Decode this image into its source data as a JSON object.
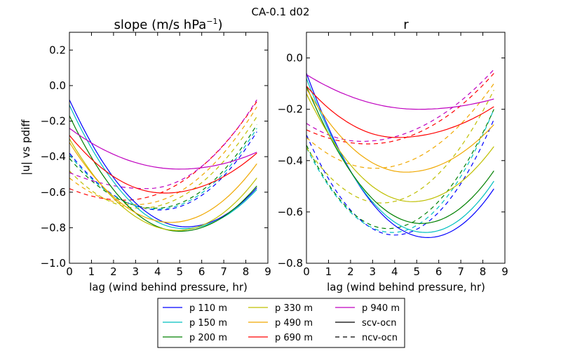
{
  "chart_data": {
    "suptitle": "CA-0.1 d02",
    "legend": {
      "placement": "bottom-center",
      "entries": [
        {
          "label": "p 110 m",
          "color": "#0000ff",
          "style": "solid"
        },
        {
          "label": "p 150 m",
          "color": "#00bfbf",
          "style": "solid"
        },
        {
          "label": "p 200 m",
          "color": "#008000",
          "style": "solid"
        },
        {
          "label": "p 330 m",
          "color": "#bfbf00",
          "style": "solid"
        },
        {
          "label": "p 490 m",
          "color": "#f0a800",
          "style": "solid"
        },
        {
          "label": "p 690 m",
          "color": "#ff0000",
          "style": "solid"
        },
        {
          "label": "p 940 m",
          "color": "#bf00bf",
          "style": "solid"
        },
        {
          "label": "scv-ocn",
          "color": "#000000",
          "style": "solid"
        },
        {
          "label": "ncv-ocn",
          "color": "#000000",
          "style": "dashed"
        }
      ]
    },
    "panels": [
      {
        "type": "line",
        "title": "slope (m/s hPa$^{-1}$)",
        "title_main": "slope (m/s hPa",
        "title_sup": "−1",
        "title_end": ")",
        "xlabel": "lag (wind behind pressure, hr)",
        "ylabel": "|u| vs pdiff",
        "xlim": [
          0,
          9
        ],
        "ylim": [
          -1.0,
          0.3
        ],
        "xticks": [
          0,
          1,
          2,
          3,
          4,
          5,
          6,
          7,
          8,
          9
        ],
        "yticks": [
          -1.0,
          -0.8,
          -0.6,
          -0.4,
          -0.2,
          0.0,
          0.2
        ],
        "ytick_labels": [
          "−1.0",
          "−0.8",
          "−0.6",
          "−0.4",
          "−0.2",
          "0.0",
          "0.2"
        ],
        "grid": false,
        "series": [
          {
            "name": "p 110 m",
            "type": "scv-ocn",
            "x": [
              0,
              8.5
            ],
            "y": [
              -0.08,
              -0.575
            ],
            "min": [
              5.3,
              -0.795
            ]
          },
          {
            "name": "p 150 m",
            "type": "scv-ocn",
            "x": [
              0,
              8.5
            ],
            "y": [
              -0.11,
              -0.585
            ],
            "min": [
              5.2,
              -0.805
            ]
          },
          {
            "name": "p 200 m",
            "type": "scv-ocn",
            "x": [
              0,
              8.5
            ],
            "y": [
              -0.17,
              -0.565
            ],
            "min": [
              5.0,
              -0.82
            ]
          },
          {
            "name": "p 330 m",
            "type": "scv-ocn",
            "x": [
              0,
              8.5
            ],
            "y": [
              -0.3,
              -0.52
            ],
            "min": [
              4.9,
              -0.815
            ]
          },
          {
            "name": "p 490 m",
            "type": "scv-ocn",
            "x": [
              0,
              8.5
            ],
            "y": [
              -0.32,
              -0.44
            ],
            "min": [
              4.6,
              -0.77
            ]
          },
          {
            "name": "p 690 m",
            "type": "scv-ocn",
            "x": [
              0,
              8.5
            ],
            "y": [
              -0.28,
              -0.38
            ],
            "min": [
              4.3,
              -0.605
            ]
          },
          {
            "name": "p 940 m",
            "type": "scv-ocn",
            "x": [
              0,
              8.5
            ],
            "y": [
              -0.24,
              -0.375
            ],
            "min": [
              5.0,
              -0.47
            ]
          },
          {
            "name": "p 110 m",
            "type": "ncv-ocn",
            "x": [
              0,
              8.5
            ],
            "y": [
              -0.38,
              -0.26
            ],
            "min": [
              4.1,
              -0.7
            ]
          },
          {
            "name": "p 150 m",
            "type": "ncv-ocn",
            "x": [
              0,
              8.5
            ],
            "y": [
              -0.39,
              -0.24
            ],
            "min": [
              4.0,
              -0.695
            ]
          },
          {
            "name": "p 200 m",
            "type": "ncv-ocn",
            "x": [
              0,
              8.5
            ],
            "y": [
              -0.41,
              -0.22
            ],
            "min": [
              3.9,
              -0.69
            ]
          },
          {
            "name": "p 330 m",
            "type": "ncv-ocn",
            "x": [
              0,
              8.5
            ],
            "y": [
              -0.48,
              -0.175
            ],
            "min": [
              3.2,
              -0.69
            ]
          },
          {
            "name": "p 490 m",
            "type": "ncv-ocn",
            "x": [
              0,
              8.5
            ],
            "y": [
              -0.52,
              -0.12
            ],
            "min": [
              3.0,
              -0.67
            ]
          },
          {
            "name": "p 690 m",
            "type": "ncv-ocn",
            "x": [
              0,
              8.5
            ],
            "y": [
              -0.58,
              -0.09
            ],
            "min": [
              2.5,
              -0.645
            ]
          },
          {
            "name": "p 940 m",
            "type": "ncv-ocn",
            "x": [
              0,
              8.5
            ],
            "y": [
              -0.49,
              -0.08
            ],
            "min": [
              3.5,
              -0.58
            ]
          }
        ]
      },
      {
        "type": "line",
        "title": "r",
        "title_main": "r",
        "title_sup": "",
        "title_end": "",
        "xlabel": "lag (wind behind pressure, hr)",
        "ylabel": "",
        "xlim": [
          0,
          9
        ],
        "ylim": [
          -0.8,
          0.1
        ],
        "xticks": [
          0,
          1,
          2,
          3,
          4,
          5,
          6,
          7,
          8,
          9
        ],
        "yticks": [
          -0.8,
          -0.6,
          -0.4,
          -0.2,
          0.0
        ],
        "ytick_labels": [
          "−0.8",
          "−0.6",
          "−0.4",
          "−0.2",
          "0.0"
        ],
        "grid": false,
        "series": [
          {
            "name": "p 110 m",
            "type": "scv-ocn",
            "x": [
              0,
              8.5
            ],
            "y": [
              -0.06,
              -0.51
            ],
            "min": [
              5.5,
              -0.7
            ]
          },
          {
            "name": "p 150 m",
            "type": "scv-ocn",
            "x": [
              0,
              8.5
            ],
            "y": [
              -0.08,
              -0.48
            ],
            "min": [
              5.4,
              -0.68
            ]
          },
          {
            "name": "p 200 m",
            "type": "scv-ocn",
            "x": [
              0,
              8.5
            ],
            "y": [
              -0.11,
              -0.44
            ],
            "min": [
              5.2,
              -0.645
            ]
          },
          {
            "name": "p 330 m",
            "type": "scv-ocn",
            "x": [
              0,
              8.5
            ],
            "y": [
              -0.14,
              -0.345
            ],
            "min": [
              4.8,
              -0.56
            ]
          },
          {
            "name": "p 490 m",
            "type": "scv-ocn",
            "x": [
              0,
              8.5
            ],
            "y": [
              -0.12,
              -0.26
            ],
            "min": [
              4.5,
              -0.445
            ]
          },
          {
            "name": "p 690 m",
            "type": "scv-ocn",
            "x": [
              0,
              8.5
            ],
            "y": [
              -0.11,
              -0.19
            ],
            "min": [
              4.1,
              -0.31
            ]
          },
          {
            "name": "p 940 m",
            "type": "scv-ocn",
            "x": [
              0,
              8.5
            ],
            "y": [
              -0.065,
              -0.16
            ],
            "min": [
              5.1,
              -0.2
            ]
          },
          {
            "name": "p 110 m",
            "type": "ncv-ocn",
            "x": [
              0,
              8.5
            ],
            "y": [
              -0.3,
              -0.24
            ],
            "min": [
              4.0,
              -0.69
            ]
          },
          {
            "name": "p 150 m",
            "type": "ncv-ocn",
            "x": [
              0,
              8.5
            ],
            "y": [
              -0.35,
              -0.2
            ],
            "min": [
              3.9,
              -0.68
            ]
          },
          {
            "name": "p 200 m",
            "type": "ncv-ocn",
            "x": [
              0,
              8.5
            ],
            "y": [
              -0.34,
              -0.2
            ],
            "min": [
              3.7,
              -0.665
            ]
          },
          {
            "name": "p 330 m",
            "type": "ncv-ocn",
            "x": [
              0,
              8.5
            ],
            "y": [
              -0.35,
              -0.125
            ],
            "min": [
              3.4,
              -0.565
            ]
          },
          {
            "name": "p 490 m",
            "type": "ncv-ocn",
            "x": [
              0,
              8.5
            ],
            "y": [
              -0.31,
              -0.1
            ],
            "min": [
              3.1,
              -0.43
            ]
          },
          {
            "name": "p 690 m",
            "type": "ncv-ocn",
            "x": [
              0,
              8.5
            ],
            "y": [
              -0.28,
              -0.06
            ],
            "min": [
              2.8,
              -0.335
            ]
          },
          {
            "name": "p 940 m",
            "type": "ncv-ocn",
            "x": [
              0,
              8.5
            ],
            "y": [
              -0.255,
              -0.045
            ],
            "min": [
              2.5,
              -0.325
            ]
          }
        ]
      }
    ]
  }
}
